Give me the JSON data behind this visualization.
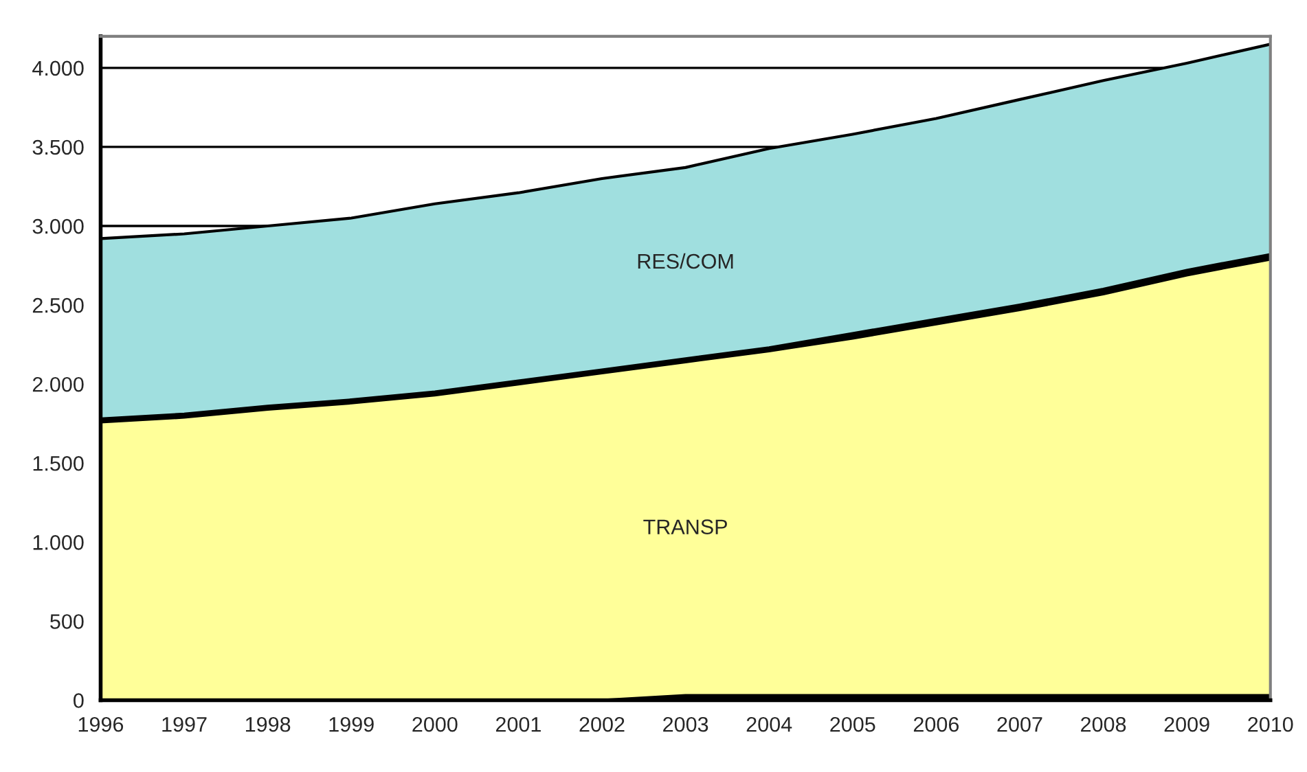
{
  "chart_data": {
    "type": "area",
    "stacked": true,
    "x": [
      1996,
      1997,
      1998,
      1999,
      2000,
      2001,
      2002,
      2003,
      2004,
      2005,
      2006,
      2007,
      2008,
      2009,
      2010
    ],
    "series": [
      {
        "color": "#000000",
        "values": [
          0,
          0,
          0,
          0,
          0,
          0,
          0,
          30,
          30,
          30,
          30,
          30,
          30,
          30,
          30
        ]
      },
      {
        "name": "TRANSP",
        "color": "#ffff99",
        "values": [
          1760,
          1790,
          1840,
          1880,
          1930,
          2000,
          2070,
          2110,
          2180,
          2260,
          2350,
          2440,
          2540,
          2660,
          2760
        ]
      },
      {
        "color": "#000000",
        "values": [
          20,
          20,
          20,
          20,
          20,
          20,
          20,
          20,
          20,
          30,
          30,
          30,
          30,
          30,
          30
        ]
      },
      {
        "name": "RES/COM",
        "color": "#a0dfdf",
        "values": [
          1140,
          1140,
          1140,
          1150,
          1190,
          1190,
          1210,
          1210,
          1260,
          1260,
          1270,
          1300,
          1320,
          1310,
          1330
        ]
      }
    ],
    "xlim": [
      1996,
      2010
    ],
    "xticks": [
      1996,
      1997,
      1998,
      1999,
      2000,
      2001,
      2002,
      2003,
      2004,
      2005,
      2006,
      2007,
      2008,
      2009,
      2010
    ],
    "ylim": [
      0,
      4200
    ],
    "yticks": [
      0,
      500,
      {
        "value": 1000,
        "label": "1.000"
      },
      {
        "value": 1500,
        "label": "1.500"
      },
      {
        "value": 2000,
        "label": "2.000"
      },
      {
        "value": 2500,
        "label": "2.500"
      },
      {
        "value": 3000,
        "label": "3.000"
      },
      {
        "value": 3500,
        "label": "3.500"
      },
      {
        "value": 4000,
        "label": "4.000"
      }
    ],
    "grid": "y",
    "legend": false
  }
}
